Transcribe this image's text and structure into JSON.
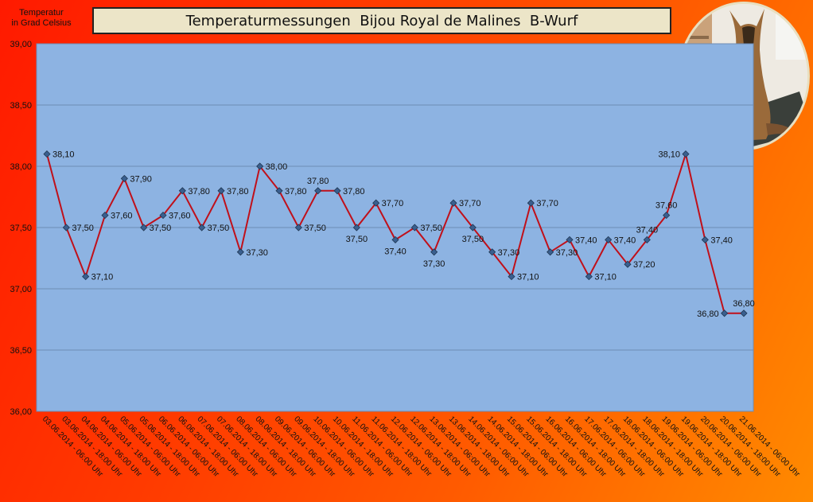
{
  "chart_data": {
    "type": "line",
    "title": "Temperaturmessungen  Bijou Royal de Malines  B-Wurf",
    "ylabel": "Temperatur\nin Grad Celsius",
    "xlabel": "",
    "ylim": [
      36.0,
      39.0
    ],
    "yticks": [
      "36,00",
      "36,50",
      "37,00",
      "37,50",
      "38,00",
      "38,50",
      "39,00"
    ],
    "grid": true,
    "legend": "none",
    "line_color": "#c0101a",
    "marker_color": "#3a5f8f",
    "plot_background": "#8db3e2",
    "categories": [
      "03.06.2014 - 06:00 Uhr",
      "03.06.2014 - 18:00 Uhr",
      "04.06.2014 - 06:00 Uhr",
      "04.06.2014 - 18:00 Uhr",
      "05.06.2014 - 06:00 Uhr",
      "05.06.2014 - 18:00 Uhr",
      "06.06.2014 - 06:00 Uhr",
      "06.06.2014 - 18:00 Uhr",
      "07.06.2014 - 06:00 Uhr",
      "07.06.2014 - 18:00 Uhr",
      "08.06.2014 - 06:00 Uhr",
      "08.06.2014 - 18:00 Uhr",
      "09.06.2014 - 06:00 Uhr",
      "09.06.2014 - 18:00 Uhr",
      "10.06.2014 - 06:00 Uhr",
      "10.06.2014 - 18:00 Uhr",
      "11.06.2014 - 06:00 Uhr",
      "11.06.2014 - 18:00 Uhr",
      "12.06.2014 - 06:00 Uhr",
      "12.06.2014 - 18:00 Uhr",
      "13.06.2014 - 06:00 Uhr",
      "13.06.2014 - 18:00 Uhr",
      "14.06.2014 - 06:00 Uhr",
      "14.06.2014 - 18:00 Uhr",
      "15.06.2014 - 06:00 Uhr",
      "15.06.2014 - 18:00 Uhr",
      "16.06.2014 - 06:00 Uhr",
      "16.06.2014 - 18:00 Uhr",
      "17.06.2014 - 06:00 Uhr",
      "17.06.2014 - 18:00 Uhr",
      "18.06.2014 - 06:00 Uhr",
      "18.06.2014 - 18:00 Uhr",
      "19.06.2014 - 06:00 Uhr",
      "19.06.2014 - 18:00 Uhr",
      "20.06.2014 - 06:00 Uhr",
      "20.06.2014 - 18:00 Uhr",
      "21.06.2014 - 06:00 Uhr"
    ],
    "values": [
      38.1,
      37.5,
      37.1,
      37.6,
      37.9,
      37.5,
      37.6,
      37.8,
      37.5,
      37.8,
      37.3,
      38.0,
      37.8,
      37.5,
      37.8,
      37.8,
      37.5,
      37.7,
      37.4,
      37.5,
      37.3,
      37.7,
      37.5,
      37.3,
      37.1,
      37.7,
      37.3,
      37.4,
      37.1,
      37.4,
      37.2,
      37.4,
      37.6,
      38.1,
      37.4,
      36.8,
      36.8
    ],
    "data_labels": [
      "38,10",
      "37,50",
      "37,10",
      "37,60",
      "37,90",
      "37,50",
      "37,60",
      "37,80",
      "37,50",
      "37,80",
      "37,30",
      "38,00",
      "37,80",
      "37,50",
      "37,80",
      "37,80",
      "37,50",
      "37,70",
      "37,40",
      "37,50",
      "37,30",
      "37,70",
      "37,50",
      "37,30",
      "37,10",
      "37,70",
      "37,30",
      "37,40",
      "37,10",
      "37,40",
      "37,20",
      "37,40",
      "37,60",
      "38,10",
      "37,40",
      "36,80",
      "36,80"
    ],
    "label_position": [
      "right",
      "right",
      "right",
      "right",
      "right",
      "right",
      "right",
      "right",
      "right",
      "right",
      "right",
      "right",
      "right",
      "right",
      "above",
      "right",
      "below",
      "right",
      "below",
      "right",
      "below",
      "right",
      "below",
      "right",
      "right",
      "right",
      "right",
      "right",
      "right",
      "right",
      "right",
      "above",
      "above",
      "left",
      "right",
      "left",
      "above"
    ]
  },
  "photo": {
    "icon": "dog-photo-icon"
  }
}
